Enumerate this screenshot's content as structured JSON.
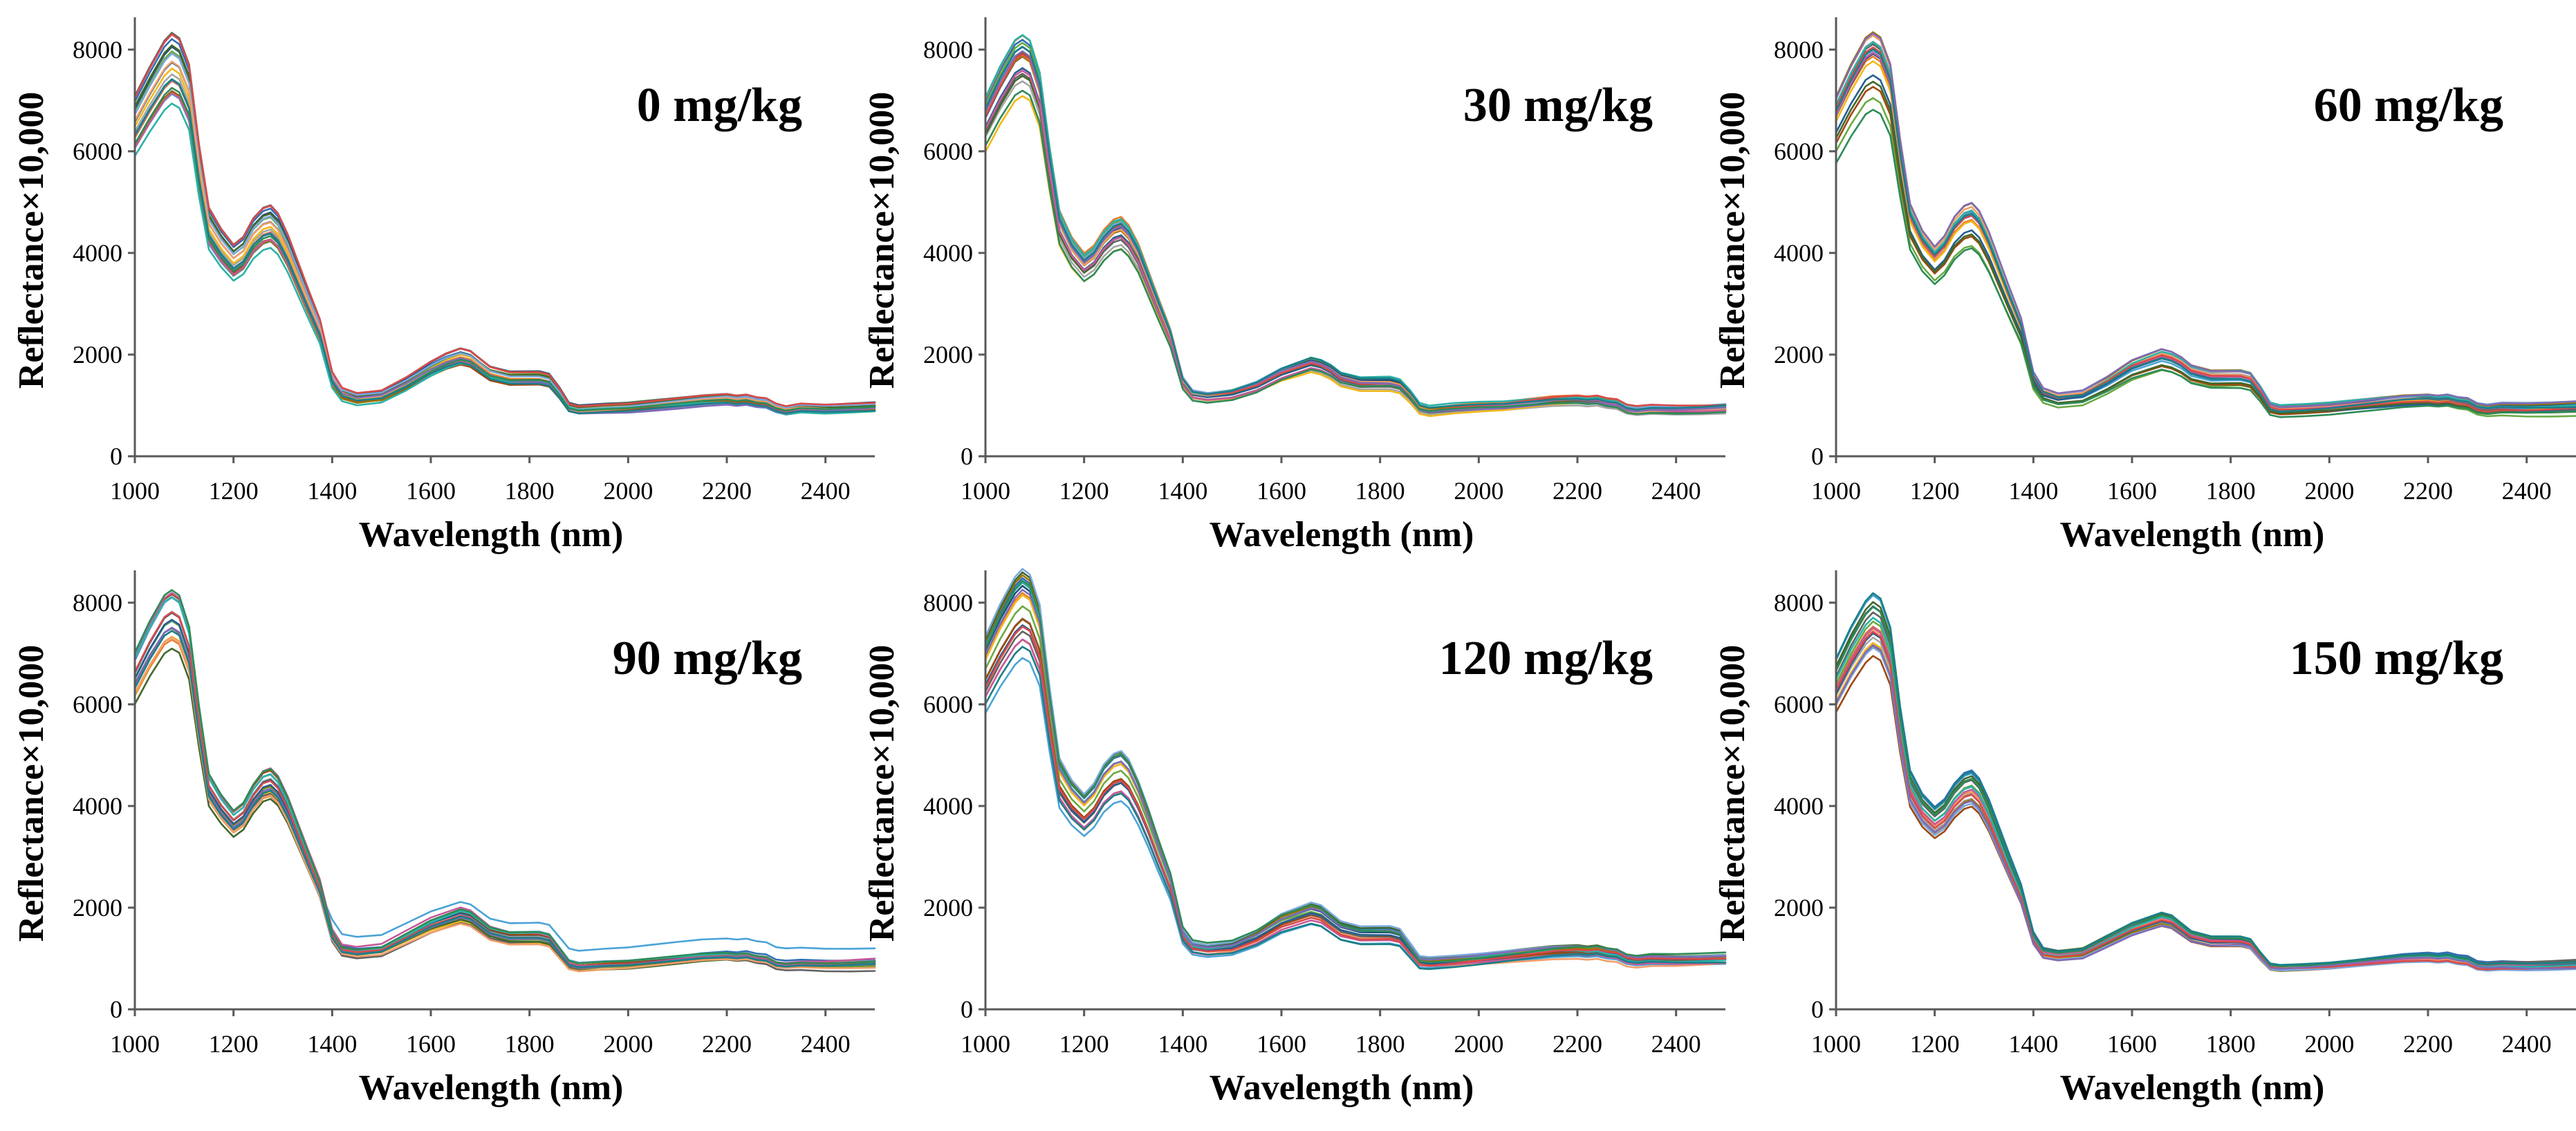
{
  "palette": [
    "#2f6eb8",
    "#e97c30",
    "#a5a5a5",
    "#f2b81c",
    "#4aa3d6",
    "#6aaa44",
    "#1f4e79",
    "#9e480e",
    "#636363",
    "#997300",
    "#255e91",
    "#43682b",
    "#7ba8dc",
    "#f19f6b",
    "#c55a9b",
    "#2bb2a7",
    "#d84a4a",
    "#7f6bb5",
    "#2e8b57",
    "#1b7f88"
  ],
  "chart_data": [
    {
      "type": "line",
      "title": "0 mg/kg",
      "xlabel": "Wavelength (nm)",
      "ylabel": "Reflectance×10,000",
      "xlim": [
        1000,
        2500
      ],
      "ylim": [
        0,
        8500
      ],
      "xticks": [
        "1000",
        "1200",
        "1400",
        "1600",
        "1800",
        "2000",
        "2200",
        "2400"
      ],
      "yticks": [
        "0",
        "2000",
        "4000",
        "6000",
        "8000"
      ],
      "x": [
        1000,
        1030,
        1060,
        1075,
        1090,
        1110,
        1130,
        1150,
        1175,
        1200,
        1220,
        1240,
        1260,
        1275,
        1290,
        1310,
        1330,
        1350,
        1375,
        1400,
        1420,
        1450,
        1500,
        1550,
        1600,
        1630,
        1660,
        1680,
        1700,
        1720,
        1740,
        1760,
        1780,
        1800,
        1820,
        1840,
        1860,
        1880,
        1900,
        1950,
        2000,
        2050,
        2100,
        2150,
        2200,
        2220,
        2240,
        2260,
        2280,
        2300,
        2320,
        2350,
        2400,
        2450,
        2500
      ],
      "mean": [
        6800,
        7350,
        7850,
        8000,
        7900,
        7400,
        5900,
        4700,
        4300,
        4000,
        4150,
        4500,
        4700,
        4750,
        4600,
        4200,
        3700,
        3200,
        2600,
        1600,
        1300,
        1200,
        1250,
        1500,
        1800,
        1950,
        2050,
        2000,
        1850,
        1700,
        1650,
        1600,
        1600,
        1600,
        1600,
        1550,
        1300,
        1000,
        950,
        980,
        1000,
        1050,
        1100,
        1150,
        1180,
        1150,
        1170,
        1120,
        1100,
        1000,
        950,
        1000,
        980,
        1000,
        1020
      ],
      "series_count": 20,
      "scale_range": [
        0.88,
        1.06
      ]
    },
    {
      "type": "line",
      "title": "30 mg/kg",
      "xlabel": "Wavelength (nm)",
      "ylabel": "Reflectance×10,000",
      "xlim": [
        1000,
        2500
      ],
      "ylim": [
        0,
        8500
      ],
      "xticks": [
        "1000",
        "1200",
        "1400",
        "1600",
        "1800",
        "2000",
        "2200",
        "2400"
      ],
      "yticks": [
        "0",
        "2000",
        "4000",
        "6000",
        "8000"
      ],
      "x": [
        1000,
        1030,
        1060,
        1075,
        1090,
        1110,
        1130,
        1150,
        1175,
        1200,
        1220,
        1240,
        1260,
        1275,
        1290,
        1310,
        1330,
        1350,
        1375,
        1400,
        1420,
        1450,
        1500,
        1550,
        1600,
        1630,
        1660,
        1680,
        1700,
        1720,
        1740,
        1760,
        1780,
        1800,
        1820,
        1840,
        1860,
        1880,
        1900,
        1950,
        2000,
        2050,
        2100,
        2150,
        2200,
        2220,
        2240,
        2260,
        2280,
        2300,
        2320,
        2350,
        2400,
        2450,
        2500
      ],
      "mean": [
        6700,
        7300,
        7800,
        7900,
        7800,
        7200,
        5800,
        4600,
        4100,
        3800,
        3950,
        4250,
        4450,
        4500,
        4350,
        4000,
        3500,
        3000,
        2400,
        1500,
        1250,
        1200,
        1250,
        1400,
        1650,
        1750,
        1850,
        1800,
        1700,
        1550,
        1500,
        1450,
        1450,
        1450,
        1450,
        1400,
        1200,
        950,
        900,
        950,
        980,
        1000,
        1050,
        1100,
        1120,
        1100,
        1120,
        1070,
        1050,
        950,
        920,
        950,
        940,
        950,
        970
      ],
      "series_count": 20,
      "scale_range": [
        0.9,
        1.05
      ]
    },
    {
      "type": "line",
      "title": "60 mg/kg",
      "xlabel": "Wavelength (nm)",
      "ylabel": "Reflectance×10,000",
      "xlim": [
        1000,
        2500
      ],
      "ylim": [
        0,
        8500
      ],
      "xticks": [
        "1000",
        "1200",
        "1400",
        "1600",
        "1800",
        "2000",
        "2200",
        "2400"
      ],
      "yticks": [
        "0",
        "2000",
        "4000",
        "6000",
        "8000"
      ],
      "x": [
        1000,
        1030,
        1060,
        1075,
        1090,
        1110,
        1130,
        1150,
        1175,
        1200,
        1220,
        1240,
        1260,
        1275,
        1290,
        1310,
        1330,
        1350,
        1375,
        1400,
        1420,
        1450,
        1500,
        1550,
        1600,
        1630,
        1660,
        1680,
        1700,
        1720,
        1740,
        1760,
        1780,
        1800,
        1820,
        1840,
        1860,
        1880,
        1900,
        1950,
        2000,
        2050,
        2100,
        2150,
        2200,
        2220,
        2240,
        2260,
        2280,
        2300,
        2320,
        2350,
        2400,
        2450,
        2500
      ],
      "mean": [
        6700,
        7300,
        7800,
        7900,
        7800,
        7300,
        5900,
        4700,
        4200,
        3900,
        4100,
        4450,
        4650,
        4700,
        4550,
        4150,
        3650,
        3150,
        2550,
        1550,
        1250,
        1150,
        1200,
        1450,
        1750,
        1850,
        1950,
        1900,
        1800,
        1650,
        1600,
        1550,
        1550,
        1550,
        1550,
        1500,
        1250,
        950,
        900,
        920,
        950,
        1000,
        1050,
        1100,
        1120,
        1100,
        1120,
        1070,
        1050,
        950,
        920,
        950,
        940,
        950,
        970
      ],
      "series_count": 20,
      "scale_range": [
        0.86,
        1.08
      ]
    },
    {
      "type": "line",
      "title": "90 mg/kg",
      "xlabel": "Wavelength (nm)",
      "ylabel": "Reflectance×10,000",
      "xlim": [
        1000,
        2500
      ],
      "ylim": [
        0,
        8500
      ],
      "xticks": [
        "1000",
        "1200",
        "1400",
        "1600",
        "1800",
        "2000",
        "2200",
        "2400"
      ],
      "yticks": [
        "0",
        "2000",
        "4000",
        "6000",
        "8000"
      ],
      "x": [
        1000,
        1030,
        1060,
        1075,
        1090,
        1110,
        1130,
        1150,
        1175,
        1200,
        1220,
        1240,
        1260,
        1275,
        1290,
        1310,
        1330,
        1350,
        1375,
        1400,
        1420,
        1450,
        1500,
        1550,
        1600,
        1630,
        1660,
        1680,
        1700,
        1720,
        1740,
        1760,
        1780,
        1800,
        1820,
        1840,
        1860,
        1880,
        1900,
        1950,
        2000,
        2050,
        2100,
        2150,
        2200,
        2220,
        2240,
        2260,
        2280,
        2300,
        2320,
        2350,
        2400,
        2450,
        2500
      ],
      "mean": [
        6800,
        7400,
        7900,
        8000,
        7900,
        7300,
        5800,
        4500,
        4100,
        3800,
        3950,
        4300,
        4550,
        4600,
        4450,
        4050,
        3550,
        3050,
        2450,
        1500,
        1200,
        1150,
        1200,
        1450,
        1700,
        1800,
        1900,
        1850,
        1700,
        1550,
        1500,
        1450,
        1450,
        1450,
        1450,
        1400,
        1150,
        900,
        850,
        880,
        900,
        950,
        1000,
        1050,
        1070,
        1050,
        1070,
        1020,
        1000,
        900,
        880,
        900,
        890,
        900,
        920
      ],
      "series_count": 20,
      "scale_range": [
        0.9,
        1.04
      ],
      "outlier": {
        "series_index": 4,
        "offset": 350
      }
    },
    {
      "type": "line",
      "title": "120 mg/kg",
      "xlabel": "Wavelength (nm)",
      "ylabel": "Reflectance×10,000",
      "xlim": [
        1000,
        2500
      ],
      "ylim": [
        0,
        8500
      ],
      "xticks": [
        "1000",
        "1200",
        "1400",
        "1600",
        "1800",
        "2000",
        "2200",
        "2400"
      ],
      "yticks": [
        "0",
        "2000",
        "4000",
        "6000",
        "8000"
      ],
      "x": [
        1000,
        1030,
        1060,
        1075,
        1090,
        1110,
        1130,
        1150,
        1175,
        1200,
        1220,
        1240,
        1260,
        1275,
        1290,
        1310,
        1330,
        1350,
        1375,
        1400,
        1420,
        1450,
        1500,
        1550,
        1600,
        1630,
        1660,
        1680,
        1700,
        1720,
        1740,
        1760,
        1780,
        1800,
        1820,
        1840,
        1860,
        1880,
        1900,
        1950,
        2000,
        2050,
        2100,
        2150,
        2200,
        2220,
        2240,
        2260,
        2280,
        2300,
        2320,
        2350,
        2400,
        2450,
        2500
      ],
      "mean": [
        6800,
        7400,
        7900,
        8050,
        7950,
        7400,
        5900,
        4600,
        4200,
        3950,
        4150,
        4500,
        4700,
        4750,
        4600,
        4200,
        3700,
        3150,
        2500,
        1500,
        1250,
        1200,
        1250,
        1450,
        1750,
        1850,
        1950,
        1900,
        1750,
        1600,
        1550,
        1500,
        1500,
        1500,
        1500,
        1450,
        1200,
        950,
        930,
        960,
        1000,
        1050,
        1100,
        1150,
        1170,
        1150,
        1170,
        1120,
        1100,
        1000,
        970,
        1000,
        990,
        1000,
        1020
      ],
      "series_count": 20,
      "scale_range": [
        0.85,
        1.08
      ]
    },
    {
      "type": "line",
      "title": "150 mg/kg",
      "xlabel": "Wavelength (nm)",
      "ylabel": "Reflectance×10,000",
      "xlim": [
        1000,
        2500
      ],
      "ylim": [
        0,
        8500
      ],
      "xticks": [
        "1000",
        "1200",
        "1400",
        "1600",
        "1800",
        "2000",
        "2200",
        "2400"
      ],
      "yticks": [
        "0",
        "2000",
        "4000",
        "6000",
        "8000"
      ],
      "x": [
        1000,
        1030,
        1060,
        1075,
        1090,
        1110,
        1130,
        1150,
        1175,
        1200,
        1220,
        1240,
        1260,
        1275,
        1290,
        1310,
        1330,
        1350,
        1375,
        1400,
        1420,
        1450,
        1500,
        1550,
        1600,
        1630,
        1660,
        1680,
        1700,
        1720,
        1740,
        1760,
        1780,
        1800,
        1820,
        1840,
        1860,
        1880,
        1900,
        1950,
        2000,
        2050,
        2100,
        2150,
        2200,
        2220,
        2240,
        2260,
        2280,
        2300,
        2320,
        2350,
        2400,
        2450,
        2500
      ],
      "mean": [
        6600,
        7200,
        7700,
        7850,
        7750,
        7200,
        5700,
        4500,
        4050,
        3800,
        3950,
        4250,
        4450,
        4500,
        4350,
        3950,
        3450,
        2950,
        2350,
        1450,
        1150,
        1100,
        1150,
        1400,
        1650,
        1750,
        1850,
        1800,
        1650,
        1500,
        1450,
        1400,
        1400,
        1400,
        1400,
        1350,
        1100,
        880,
        850,
        870,
        900,
        950,
        1000,
        1050,
        1070,
        1050,
        1070,
        1020,
        1000,
        900,
        880,
        900,
        890,
        900,
        920
      ],
      "series_count": 20,
      "scale_range": [
        0.88,
        1.04
      ]
    }
  ]
}
